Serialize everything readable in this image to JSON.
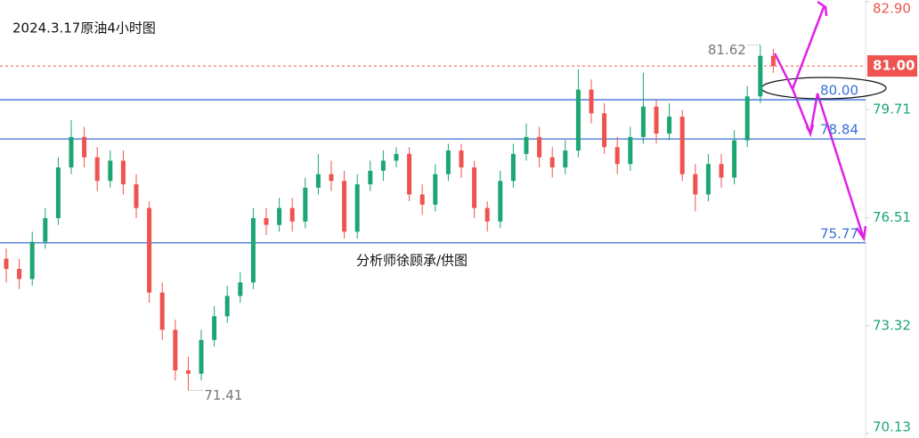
{
  "chart_data": {
    "type": "candlestick",
    "title": "2024.3.17原油4小时图",
    "watermark": "分析师徐顾承/供图",
    "ylim": [
      70.0,
      82.95
    ],
    "yticks": [
      {
        "value": 82.9,
        "label": "82.90"
      },
      79.71,
      76.51,
      73.32,
      70.13
    ],
    "current_price": {
      "value": 81,
      "label": "81.00"
    },
    "levels": [
      {
        "value": 80,
        "label": "80.00"
      },
      78.84,
      75.77
    ],
    "high_annotation": 81.62,
    "low_annotation": 71.41,
    "up_color": "#1ca672",
    "down_color": "#ef5350",
    "open": [
      75.3,
      75.0,
      74.7,
      75.8,
      76.5,
      78.0,
      78.9,
      78.3,
      77.6,
      78.2,
      77.5,
      76.8,
      74.3,
      73.2,
      72.0,
      71.9,
      72.9,
      73.6,
      74.2,
      74.6,
      76.5,
      76.3,
      76.8,
      76.4,
      77.4,
      77.8,
      77.6,
      76.1,
      77.5,
      77.9,
      78.2,
      78.4,
      77.2,
      76.9,
      77.8,
      78.5,
      78.0,
      76.8,
      76.4,
      77.6,
      78.4,
      78.9,
      78.3,
      78.0,
      78.5,
      80.3,
      79.6,
      78.6,
      78.1,
      78.9,
      79.8,
      79.0,
      79.5,
      77.8,
      77.2,
      78.1,
      77.7,
      78.8,
      80.1,
      81.3
    ],
    "high": [
      75.6,
      75.3,
      76.1,
      76.8,
      78.3,
      79.4,
      79.2,
      78.6,
      78.5,
      78.5,
      77.8,
      77.0,
      74.6,
      73.5,
      72.4,
      73.2,
      73.9,
      74.5,
      74.9,
      76.8,
      76.8,
      77.1,
      77.1,
      77.7,
      78.4,
      78.2,
      77.9,
      77.8,
      78.2,
      78.5,
      78.6,
      78.6,
      77.5,
      78.1,
      78.7,
      78.7,
      78.2,
      77.0,
      77.9,
      78.7,
      79.3,
      79.2,
      78.6,
      78.8,
      80.9,
      80.6,
      79.9,
      78.9,
      79.2,
      80.8,
      80.0,
      79.9,
      79.7,
      78.1,
      78.4,
      78.4,
      79.1,
      80.4,
      81.62,
      81.5
    ],
    "low": [
      74.6,
      74.4,
      74.5,
      75.6,
      76.3,
      77.8,
      78.0,
      77.3,
      77.4,
      77.2,
      76.5,
      74.0,
      72.9,
      71.7,
      71.41,
      71.7,
      72.7,
      73.4,
      74.0,
      74.4,
      76.0,
      76.1,
      76.1,
      76.2,
      77.2,
      77.3,
      75.9,
      75.9,
      77.3,
      77.6,
      78.0,
      77.0,
      76.6,
      76.7,
      77.6,
      77.7,
      76.5,
      76.1,
      76.2,
      77.4,
      78.2,
      78.0,
      77.7,
      77.8,
      78.3,
      79.3,
      78.4,
      77.8,
      77.9,
      78.7,
      78.7,
      78.8,
      77.6,
      76.7,
      77.0,
      77.4,
      77.5,
      78.6,
      79.9,
      80.8
    ],
    "close": [
      75.0,
      74.7,
      75.8,
      76.5,
      78.0,
      78.9,
      78.3,
      77.6,
      78.2,
      77.5,
      76.8,
      74.3,
      73.2,
      72.0,
      71.9,
      72.9,
      73.6,
      74.2,
      74.6,
      76.5,
      76.3,
      76.8,
      76.4,
      77.4,
      77.8,
      77.6,
      76.1,
      77.5,
      77.9,
      78.2,
      78.4,
      77.2,
      76.9,
      77.8,
      78.5,
      78.0,
      76.8,
      76.4,
      77.6,
      78.4,
      78.9,
      78.3,
      78.0,
      78.5,
      80.3,
      79.6,
      78.6,
      78.1,
      78.9,
      79.8,
      79.0,
      79.5,
      77.8,
      77.2,
      78.1,
      77.7,
      78.8,
      80.1,
      81.3,
      81.0
    ]
  }
}
